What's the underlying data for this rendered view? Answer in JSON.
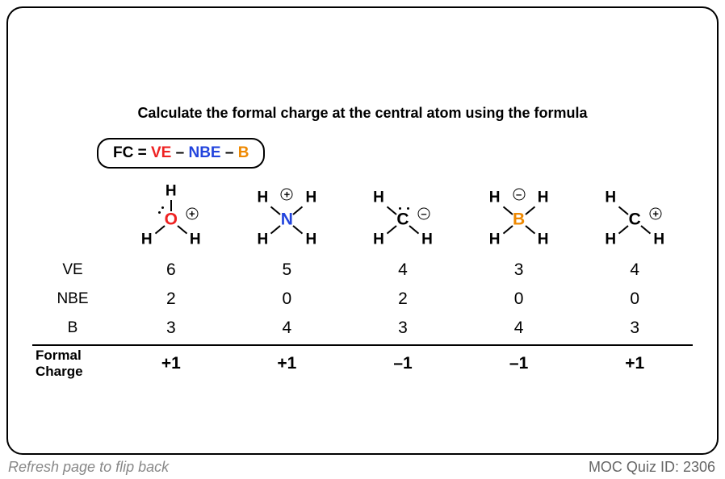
{
  "title": "Calculate the formal charge at the central atom using the formula",
  "formula": {
    "prefix": "FC = ",
    "term1": "VE",
    "sep1": " – ",
    "term2": "NBE",
    "sep2": " – ",
    "term3": "B"
  },
  "colors": {
    "VE": "#ee2222",
    "NBE": "#2244dd",
    "B": "#ee8800",
    "O": "#ee2222",
    "N": "#2244dd",
    "C": "#000000",
    "Bo": "#ee8800",
    "H": "#000000"
  },
  "molecules": [
    {
      "center": "O",
      "centerColor": "#ee2222",
      "h": [
        "top",
        "ll",
        "lr"
      ],
      "lonePairs": 1,
      "charge": "+",
      "chargePos": "ur"
    },
    {
      "center": "N",
      "centerColor": "#2244dd",
      "h": [
        "ul",
        "ur",
        "ll",
        "lr"
      ],
      "lonePairs": 0,
      "charge": "+",
      "chargePos": "top"
    },
    {
      "center": "C",
      "centerColor": "#000000",
      "h": [
        "ul",
        "ll",
        "lr"
      ],
      "lonePairs": 1,
      "charge": "–",
      "chargePos": "ur",
      "lonePairPos": "top"
    },
    {
      "center": "B",
      "centerColor": "#ee8800",
      "h": [
        "ul",
        "ur",
        "ll",
        "lr"
      ],
      "lonePairs": 0,
      "charge": "–",
      "chargePos": "top"
    },
    {
      "center": "C",
      "centerColor": "#000000",
      "h": [
        "ul",
        "ll",
        "lr"
      ],
      "lonePairs": 0,
      "charge": "+",
      "chargePos": "ur"
    }
  ],
  "rows": {
    "VE": {
      "label": "VE",
      "values": [
        "6",
        "5",
        "4",
        "3",
        "4"
      ]
    },
    "NBE": {
      "label": "NBE",
      "values": [
        "2",
        "0",
        "2",
        "0",
        "0"
      ]
    },
    "B": {
      "label": "B",
      "values": [
        "3",
        "4",
        "3",
        "4",
        "3"
      ]
    },
    "FC": {
      "label": "Formal\nCharge",
      "values": [
        "+1",
        "+1",
        "–1",
        "–1",
        "+1"
      ]
    }
  },
  "footer": {
    "left": "Refresh page to flip back",
    "right": "MOC Quiz ID: 2306"
  }
}
